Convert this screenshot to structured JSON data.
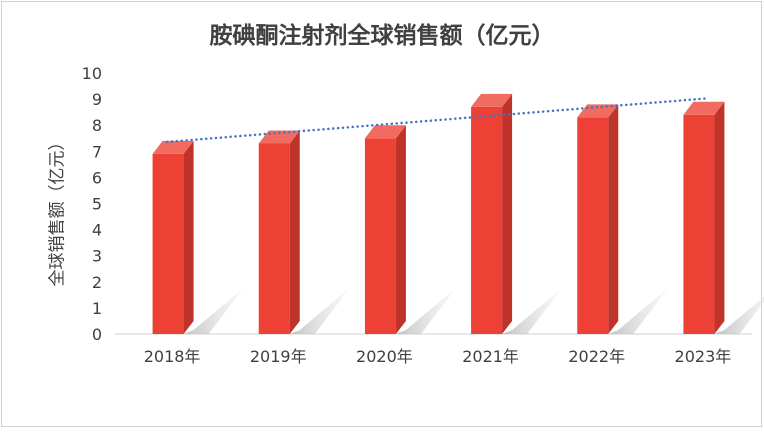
{
  "chart_data": {
    "type": "bar",
    "title": "胺碘酮注射剂全球销售额（亿元）",
    "xlabel": "",
    "ylabel": "全球销售额（亿元）",
    "categories": [
      "2018年",
      "2019年",
      "2020年",
      "2021年",
      "2022年",
      "2023年"
    ],
    "values": [
      6.9,
      7.3,
      7.5,
      8.7,
      8.3,
      8.4
    ],
    "ylim": [
      0,
      10
    ],
    "yticks": [
      0,
      1,
      2,
      3,
      4,
      5,
      6,
      7,
      8,
      9,
      10
    ],
    "grid": false,
    "legend": "none",
    "style": "3d-column",
    "trendline": {
      "type": "linear",
      "style": "dotted",
      "color": "#4472C4"
    },
    "colors": {
      "bar_front": "#EE4136",
      "bar_side": "#C0332B",
      "bar_top": "#F26B60"
    }
  }
}
